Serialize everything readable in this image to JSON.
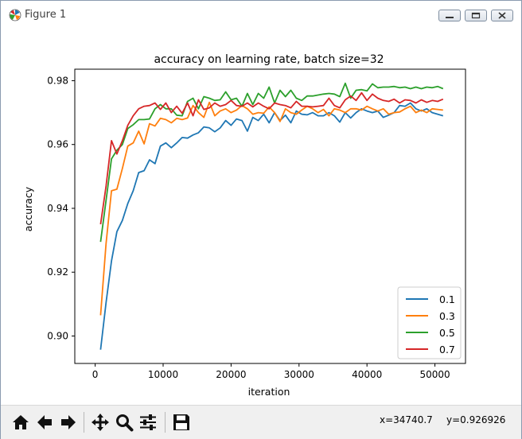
{
  "window": {
    "title": "Figure 1",
    "icon": "matplotlib-logo-icon",
    "controls": [
      "minimize-icon",
      "maximize-icon",
      "close-icon"
    ]
  },
  "toolbar": {
    "buttons": [
      "home-icon",
      "back-arrow-icon",
      "forward-arrow-icon",
      "pan-icon",
      "zoom-icon",
      "configure-subplots-icon",
      "save-icon"
    ]
  },
  "status": {
    "x_readout": "x=34740.7",
    "y_readout": "y=0.926926"
  },
  "chart_data": {
    "type": "line",
    "title": "accuracy on learning rate, batch size=32",
    "xlabel": "iteration",
    "ylabel": "accuracy",
    "xlim": [
      -3000,
      54500
    ],
    "ylim": [
      0.8914,
      0.9836
    ],
    "xticks": [
      0,
      10000,
      20000,
      30000,
      40000,
      50000
    ],
    "yticks": [
      0.9,
      0.92,
      0.94,
      0.96,
      0.98
    ],
    "xtick_labels": [
      "0",
      "10000",
      "20000",
      "30000",
      "40000",
      "50000"
    ],
    "ytick_labels": [
      "0.90",
      "0.92",
      "0.94",
      "0.96",
      "0.98"
    ],
    "grid": false,
    "legend_position": "lower-right",
    "x": [
      800,
      1600,
      2400,
      3200,
      4000,
      4800,
      5600,
      6400,
      7200,
      8000,
      8800,
      9600,
      10400,
      11200,
      12000,
      12800,
      13600,
      14400,
      15200,
      16000,
      16800,
      17600,
      18400,
      19200,
      20000,
      20800,
      21600,
      22400,
      23200,
      24000,
      24800,
      25600,
      26400,
      27200,
      28000,
      28800,
      29600,
      30400,
      31200,
      32000,
      32800,
      33600,
      34400,
      35200,
      36000,
      36800,
      37600,
      38400,
      39200,
      40000,
      40800,
      41600,
      42400,
      43200,
      44000,
      44800,
      45600,
      46400,
      47200,
      48000,
      48800,
      49600,
      50400,
      51200
    ],
    "series": [
      {
        "name": "0.1",
        "color": "#1f77b4",
        "values": [
          0.8957,
          0.9105,
          0.9235,
          0.9327,
          0.9362,
          0.9415,
          0.9455,
          0.9512,
          0.9518,
          0.9552,
          0.954,
          0.9595,
          0.9605,
          0.959,
          0.9605,
          0.9622,
          0.962,
          0.963,
          0.9637,
          0.9655,
          0.9652,
          0.964,
          0.9652,
          0.9675,
          0.966,
          0.968,
          0.9675,
          0.9642,
          0.9685,
          0.9675,
          0.9695,
          0.9668,
          0.97,
          0.9675,
          0.9692,
          0.9668,
          0.9705,
          0.9695,
          0.9693,
          0.97,
          0.969,
          0.969,
          0.97,
          0.969,
          0.967,
          0.97,
          0.9683,
          0.97,
          0.9712,
          0.9705,
          0.97,
          0.9705,
          0.9685,
          0.9692,
          0.97,
          0.9722,
          0.972,
          0.973,
          0.9712,
          0.9705,
          0.9712,
          0.97,
          0.9695,
          0.969
        ]
      },
      {
        "name": "0.3",
        "color": "#ff7f0e",
        "values": [
          0.9065,
          0.929,
          0.9455,
          0.946,
          0.9525,
          0.9595,
          0.9605,
          0.9642,
          0.9602,
          0.9665,
          0.9658,
          0.9682,
          0.9678,
          0.9668,
          0.9682,
          0.9678,
          0.9683,
          0.9722,
          0.97,
          0.9685,
          0.9732,
          0.969,
          0.9705,
          0.9712,
          0.97,
          0.9708,
          0.9722,
          0.9712,
          0.9695,
          0.97,
          0.9698,
          0.9718,
          0.97,
          0.9672,
          0.9712,
          0.97,
          0.9695,
          0.9708,
          0.972,
          0.9712,
          0.97,
          0.971,
          0.969,
          0.9712,
          0.9708,
          0.97,
          0.9712,
          0.9712,
          0.9708,
          0.972,
          0.9712,
          0.9705,
          0.9712,
          0.9695,
          0.97,
          0.9702,
          0.9712,
          0.972,
          0.97,
          0.9708,
          0.97,
          0.9712,
          0.971,
          0.9708
        ]
      },
      {
        "name": "0.5",
        "color": "#2ca02c",
        "values": [
          0.9295,
          0.9425,
          0.9555,
          0.9582,
          0.96,
          0.965,
          0.9662,
          0.9678,
          0.9678,
          0.968,
          0.9712,
          0.9725,
          0.9712,
          0.9712,
          0.9692,
          0.969,
          0.9735,
          0.9745,
          0.9712,
          0.975,
          0.9745,
          0.9738,
          0.974,
          0.9765,
          0.974,
          0.9745,
          0.972,
          0.976,
          0.9725,
          0.976,
          0.9745,
          0.978,
          0.973,
          0.977,
          0.975,
          0.977,
          0.9745,
          0.9738,
          0.9752,
          0.9752,
          0.9755,
          0.9758,
          0.976,
          0.9758,
          0.975,
          0.9792,
          0.9745,
          0.977,
          0.9772,
          0.9768,
          0.979,
          0.9778,
          0.978,
          0.978,
          0.9782,
          0.9778,
          0.978,
          0.9775,
          0.978,
          0.9775,
          0.978,
          0.9778,
          0.9782,
          0.9775
        ]
      },
      {
        "name": "0.7",
        "color": "#d62728",
        "values": [
          0.935,
          0.947,
          0.9612,
          0.957,
          0.9612,
          0.966,
          0.969,
          0.9712,
          0.972,
          0.9722,
          0.973,
          0.971,
          0.973,
          0.97,
          0.972,
          0.9698,
          0.973,
          0.969,
          0.974,
          0.971,
          0.9715,
          0.973,
          0.972,
          0.9725,
          0.9738,
          0.9722,
          0.972,
          0.973,
          0.9718,
          0.973,
          0.972,
          0.9712,
          0.973,
          0.9725,
          0.9722,
          0.9715,
          0.9735,
          0.972,
          0.972,
          0.9718,
          0.972,
          0.9722,
          0.9745,
          0.9722,
          0.9715,
          0.974,
          0.9752,
          0.9738,
          0.9762,
          0.9738,
          0.9758,
          0.9745,
          0.9738,
          0.9735,
          0.9742,
          0.973,
          0.974,
          0.9738,
          0.973,
          0.974,
          0.9732,
          0.9738,
          0.9735,
          0.9742
        ]
      }
    ]
  }
}
